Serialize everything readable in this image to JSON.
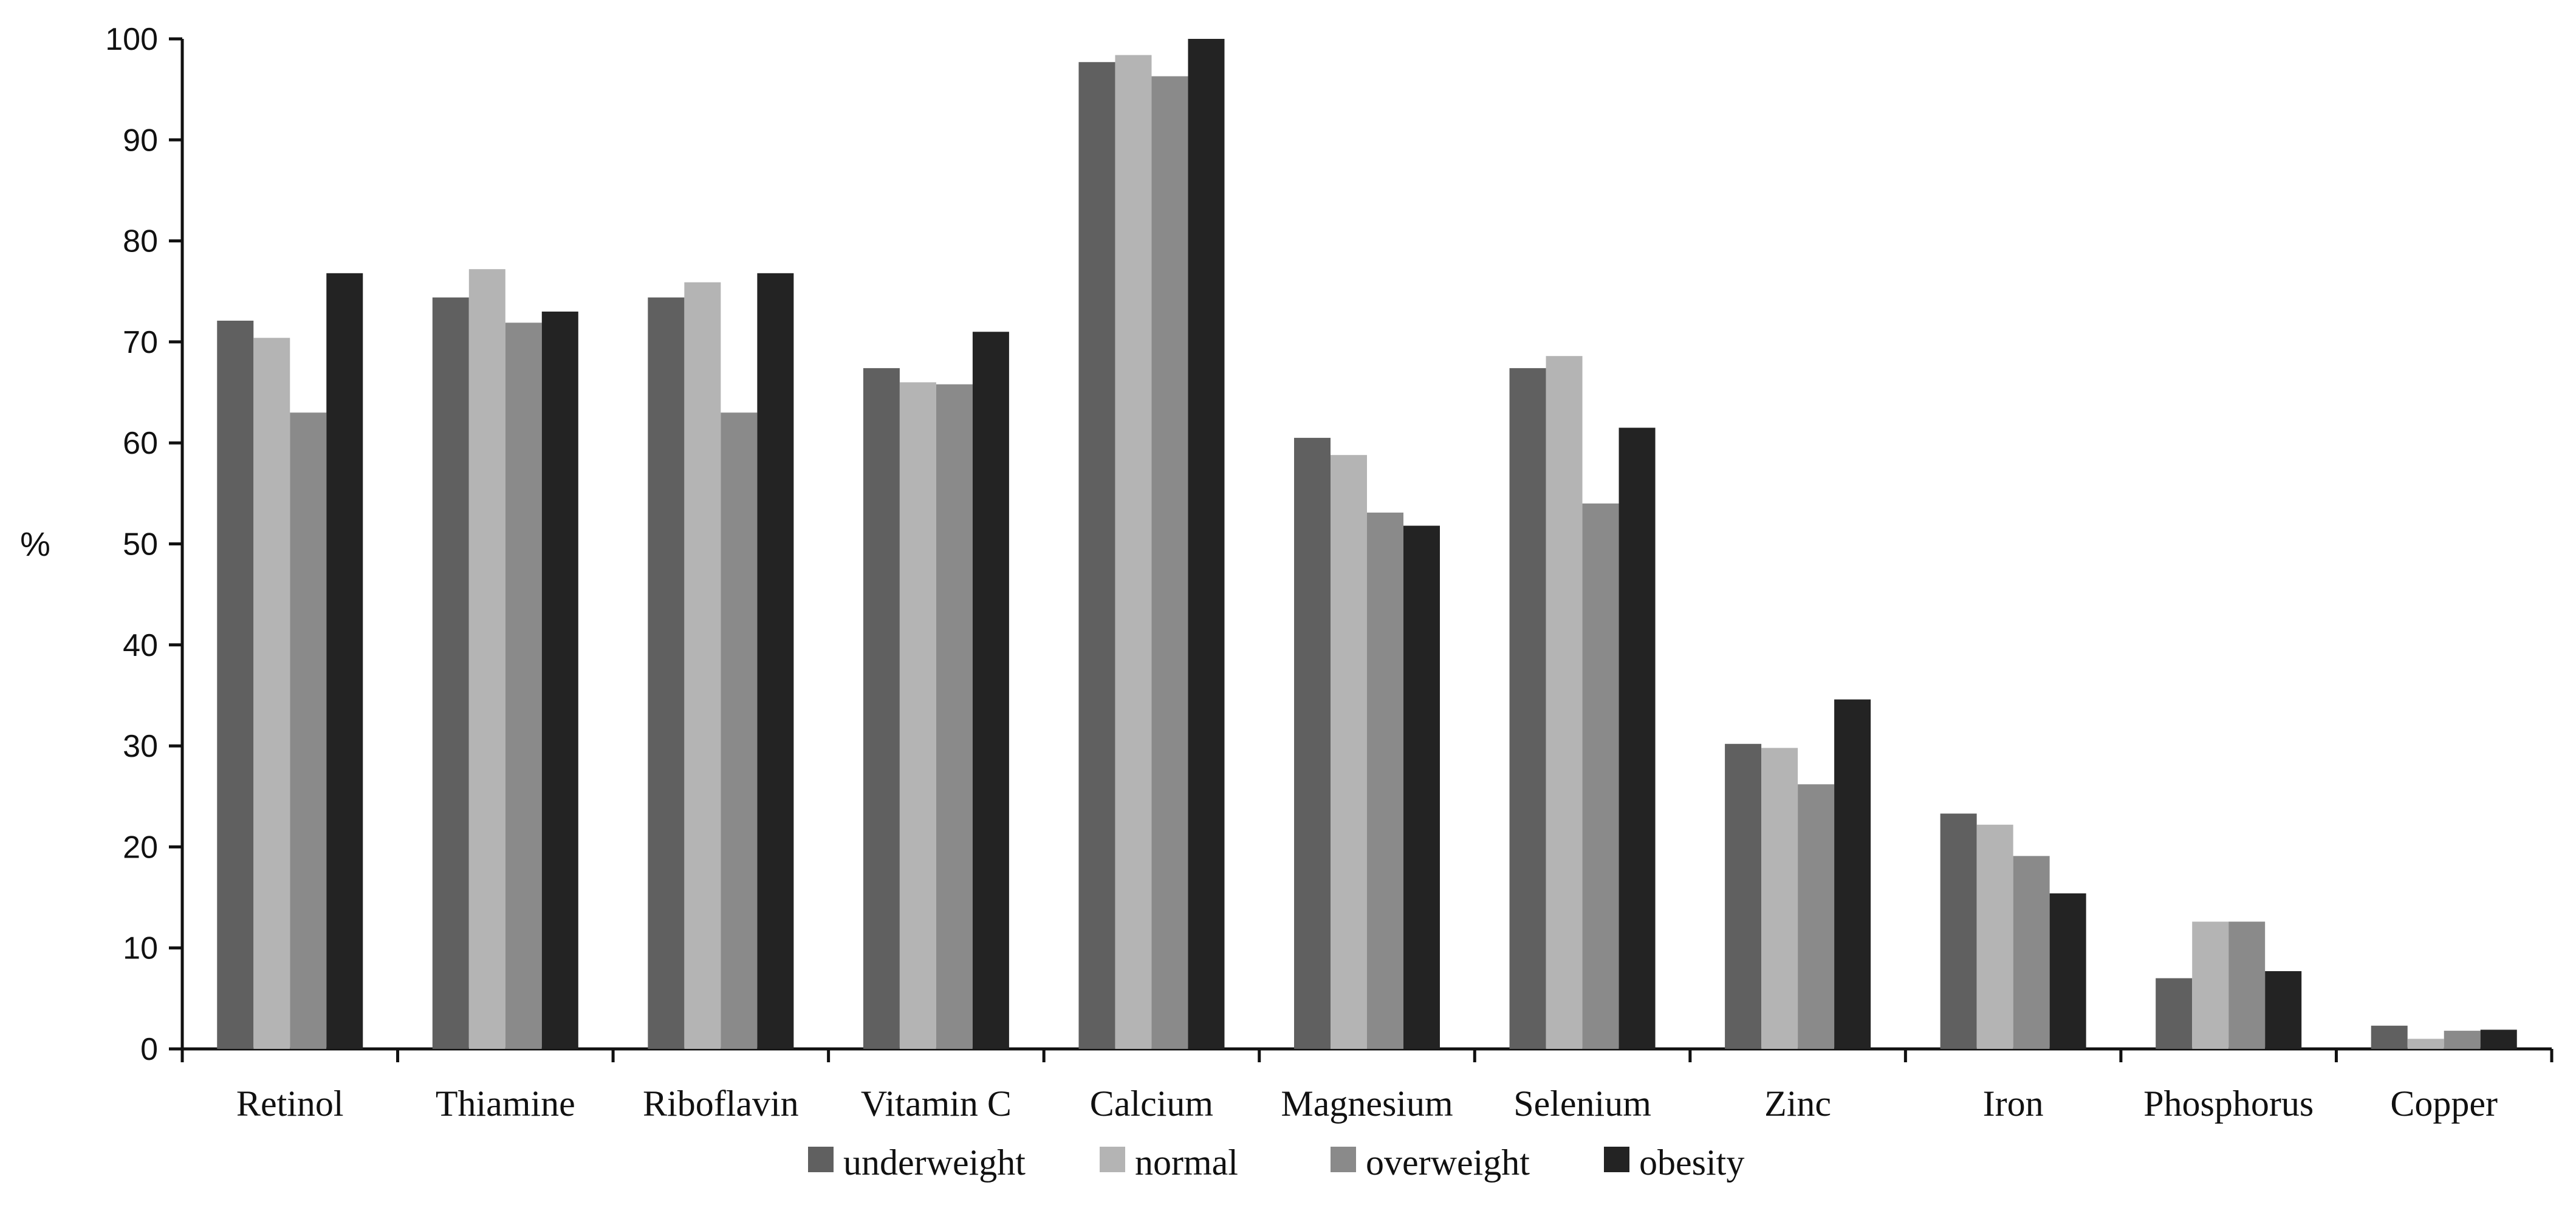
{
  "chart_data": {
    "type": "bar",
    "title": "",
    "xlabel": "",
    "ylabel": "%",
    "ylim": [
      0,
      100
    ],
    "yticks": [
      0,
      10,
      20,
      30,
      40,
      50,
      60,
      70,
      80,
      90,
      100
    ],
    "grid": false,
    "legend_position": "bottom",
    "categories": [
      "Retinol",
      "Thiamine",
      "Riboflavin",
      "Vitamin C",
      "Calcium",
      "Magnesium",
      "Selenium",
      "Zinc",
      "Iron",
      "Phosphorus",
      "Copper"
    ],
    "series": [
      {
        "name": "underweight",
        "color": "#606060",
        "values": [
          72.1,
          74.4,
          74.4,
          67.4,
          97.7,
          60.5,
          67.4,
          30.2,
          23.3,
          7.0,
          2.3
        ]
      },
      {
        "name": "normal",
        "color": "#b4b4b4",
        "values": [
          70.4,
          77.2,
          75.9,
          66.0,
          98.4,
          58.8,
          68.6,
          29.8,
          22.2,
          12.6,
          1.0
        ]
      },
      {
        "name": "overweight",
        "color": "#8a8a8a",
        "values": [
          63.0,
          71.9,
          63.0,
          65.8,
          96.3,
          53.1,
          54.0,
          26.2,
          19.1,
          12.6,
          1.8
        ]
      },
      {
        "name": "obesity",
        "color": "#232323",
        "values": [
          76.8,
          73.0,
          76.8,
          71.0,
          100.0,
          51.8,
          61.5,
          34.6,
          15.4,
          7.7,
          1.9
        ]
      }
    ]
  }
}
